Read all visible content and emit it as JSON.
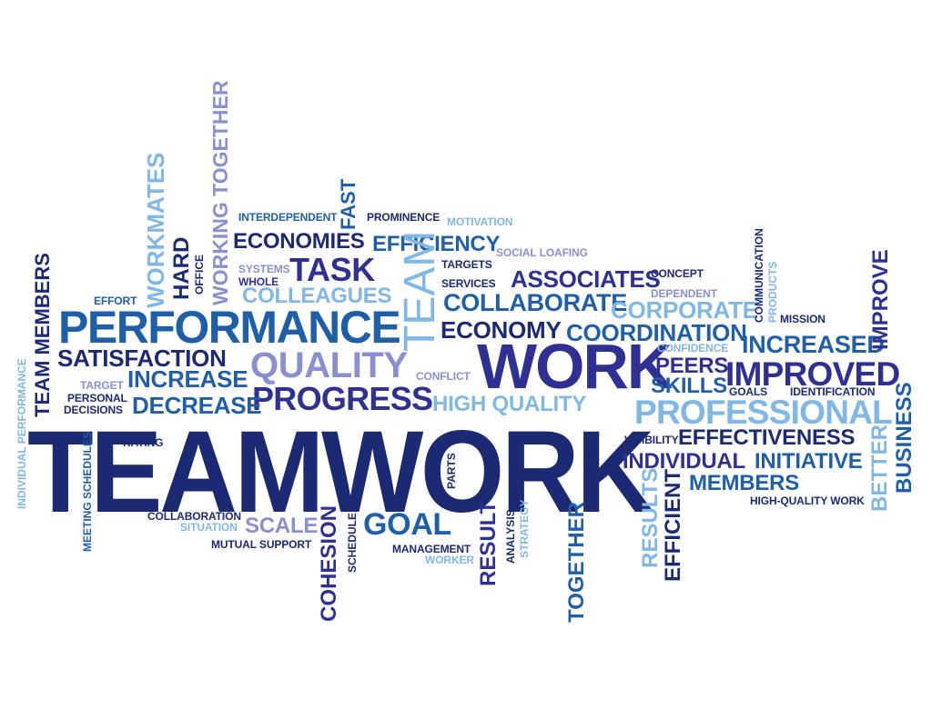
{
  "colors": {
    "dark_navy": "#1b2a73",
    "royal_blue": "#1f5fa8",
    "mid_blue": "#2c7fc4",
    "light_blue": "#7fb8e6",
    "lavender": "#8a8fd1",
    "indigo": "#2e3192"
  },
  "words": {
    "teamwork": "TEAMWORK",
    "performance": "PERFORMANCE",
    "work": "WORK",
    "quality": "QUALITY",
    "progress": "PROGRESS",
    "professional": "PROFESSIONAL",
    "improved": "IMPROVED",
    "team": "TEAM",
    "task": "TASK",
    "economies": "ECONOMIES",
    "efficiency": "EFFICIENCY",
    "colleagues": "COLLEAGUES",
    "associates": "ASSOCIATES",
    "collaborate": "COLLABORATE",
    "corporate": "CORPORATE",
    "economy": "ECONOMY",
    "coordination": "COORDINATION",
    "increased": "INCREASED",
    "satisfaction": "SATISFACTION",
    "increase": "INCREASE",
    "decrease": "DECREASE",
    "high_quality": "HIGH QUALITY",
    "peers": "PEERS",
    "skills": "SKILLS",
    "effectiveness": "EFFECTIVENESS",
    "individual": "INDIVIDUAL",
    "initiative": "INITIATIVE",
    "members": "MEMBERS",
    "goal": "GOAL",
    "scale": "SCALE",
    "interdependent": "INTERDEPENDENT",
    "prominence": "PROMINENCE",
    "motivation": "MOTIVATION",
    "social_loafing": "SOCIAL LOAFING",
    "targets": "TARGETS",
    "services": "SERVICES",
    "systems": "SYSTEMS",
    "whole": "WHOLE",
    "effort": "EFFORT",
    "concept": "CONCEPT",
    "dependent": "DEPENDENT",
    "mission": "MISSION",
    "confidence": "CONFIDENCE",
    "goals": "GOALS",
    "identification": "IDENTIFICATION",
    "target": "TARGET",
    "personal": "PERSONAL",
    "decisions": "DECISIONS",
    "conflict": "CONFLICT",
    "rating": "RATING",
    "visibility": "VISIBILITY",
    "high_quality_work": "HIGH-QUALITY WORK",
    "collaboration": "COLLABORATION",
    "situation": "SITUATION",
    "mutual_support": "MUTUAL SUPPORT",
    "management": "MANAGEMENT",
    "worker": "WORKER",
    "workmates": "WORKMATES",
    "working_together": "WORKING TOGETHER",
    "fast": "FAST",
    "hard": "HARD",
    "office": "OFFICE",
    "team_members": "TEAM MEMBERS",
    "individual_performance": "INDIVIDUAL PERFORMANCE",
    "meeting_schedules": "MEETING SCHEDULES",
    "cohesion": "COHESION",
    "schedule": "SCHEDULE",
    "result": "RESULT",
    "analysis": "ANALYSIS",
    "strategy": "STRATEGY",
    "together": "TOGETHER",
    "results": "RESULTS",
    "efficient": "EFFICIENT",
    "parts": "PARTS",
    "communication": "COMMUNICATION",
    "products": "PRODUCTS",
    "improve": "IMPROVE",
    "better": "BETTER",
    "business": "BUSINESS"
  }
}
